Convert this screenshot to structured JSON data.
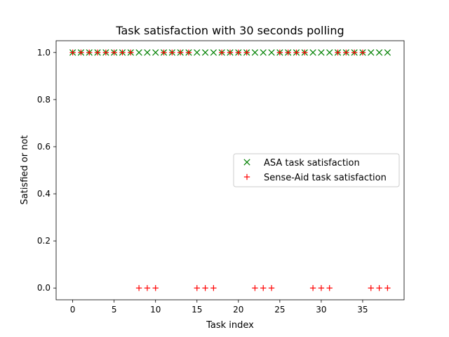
{
  "chart_data": {
    "type": "scatter",
    "title": "Task satisfaction with 30 seconds polling",
    "xlabel": "Task index",
    "ylabel": "Satisfied or not",
    "xlim": [
      -2,
      40
    ],
    "ylim": [
      -0.05,
      1.05
    ],
    "xticks": [
      0,
      5,
      10,
      15,
      20,
      25,
      30,
      35
    ],
    "xtick_labels": [
      "0",
      "5",
      "10",
      "15",
      "20",
      "25",
      "30",
      "35"
    ],
    "yticks": [
      0.0,
      0.2,
      0.4,
      0.6,
      0.8,
      1.0
    ],
    "ytick_labels": [
      "0.0",
      "0.2",
      "0.4",
      "0.6",
      "0.8",
      "1.0"
    ],
    "grid": false,
    "legend_position": "center-right",
    "series": [
      {
        "name": "ASA task satisfaction",
        "marker": "x",
        "color": "#008000",
        "x": [
          0,
          1,
          2,
          3,
          4,
          5,
          6,
          7,
          8,
          9,
          10,
          11,
          12,
          13,
          14,
          15,
          16,
          17,
          18,
          19,
          20,
          21,
          22,
          23,
          24,
          25,
          26,
          27,
          28,
          29,
          30,
          31,
          32,
          33,
          34,
          35,
          36,
          37,
          38
        ],
        "y": [
          1,
          1,
          1,
          1,
          1,
          1,
          1,
          1,
          1,
          1,
          1,
          1,
          1,
          1,
          1,
          1,
          1,
          1,
          1,
          1,
          1,
          1,
          1,
          1,
          1,
          1,
          1,
          1,
          1,
          1,
          1,
          1,
          1,
          1,
          1,
          1,
          1,
          1,
          1
        ]
      },
      {
        "name": "Sense-Aid task satisfaction",
        "marker": "+",
        "color": "#ff0000",
        "x": [
          0,
          1,
          2,
          3,
          4,
          5,
          6,
          7,
          8,
          9,
          10,
          11,
          12,
          13,
          14,
          15,
          16,
          17,
          18,
          19,
          20,
          21,
          22,
          23,
          24,
          25,
          26,
          27,
          28,
          29,
          30,
          31,
          32,
          33,
          34,
          35,
          36,
          37,
          38
        ],
        "y": [
          1,
          1,
          1,
          1,
          1,
          1,
          1,
          1,
          0,
          0,
          0,
          1,
          1,
          1,
          1,
          0,
          0,
          0,
          1,
          1,
          1,
          1,
          0,
          0,
          0,
          1,
          1,
          1,
          1,
          0,
          0,
          0,
          1,
          1,
          1,
          1,
          0,
          0,
          0
        ]
      }
    ]
  }
}
